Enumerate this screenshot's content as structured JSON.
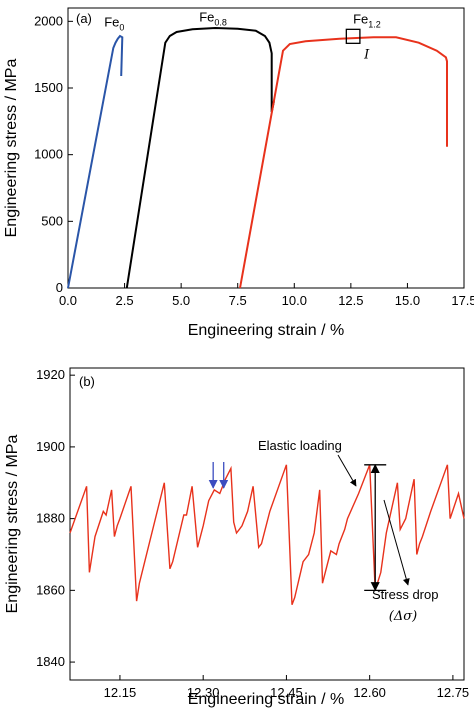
{
  "colors": {
    "fe0": "#2a55a8",
    "fe08": "#000000",
    "fe12": "#e8321c",
    "arrow": "#3b4cc0"
  },
  "chart_data": [
    {
      "type": "line",
      "panel_label": "(a)",
      "xlabel": "Engineering strain / %",
      "ylabel": "Engineering stress / MPa",
      "xlim": [
        0,
        17.5
      ],
      "ylim": [
        0,
        2100
      ],
      "x_ticks": [
        0,
        2.5,
        5,
        7.5,
        10,
        12.5,
        15,
        17.5
      ],
      "x_tick_labels": [
        "0.0",
        "2.5",
        "5.0",
        "7.5",
        "10.0",
        "12.5",
        "15.0",
        "17.5"
      ],
      "y_ticks": [
        0,
        500,
        1000,
        1500,
        2000
      ],
      "y_tick_labels": [
        "0",
        "500",
        "1000",
        "1500",
        "2000"
      ],
      "series": [
        {
          "name": "Fe",
          "subscript": "0",
          "color": "#2a55a8",
          "x": [
            0,
            2.0,
            2.1,
            2.2,
            2.3,
            2.4,
            2.35
          ],
          "y": [
            0,
            1800,
            1840,
            1870,
            1890,
            1880,
            1590
          ]
        },
        {
          "name": "Fe",
          "subscript": "0.8",
          "color": "#000000",
          "x": [
            2.6,
            4.3,
            4.5,
            4.8,
            5.5,
            6.5,
            7.5,
            8.3,
            8.7,
            8.9,
            9.0,
            9.0,
            9.1
          ],
          "y": [
            0,
            1840,
            1890,
            1920,
            1940,
            1950,
            1945,
            1930,
            1890,
            1840,
            1760,
            1320,
            1400
          ]
        },
        {
          "name": "Fe",
          "subscript": "1.2",
          "color": "#e8321c",
          "x": [
            7.6,
            9.5,
            9.8,
            10.5,
            12,
            13.5,
            14.5,
            15.5,
            16.3,
            16.7,
            16.75,
            16.75
          ],
          "y": [
            0,
            1780,
            1830,
            1850,
            1870,
            1880,
            1880,
            1840,
            1780,
            1730,
            1700,
            1060
          ]
        }
      ],
      "annotations": [
        {
          "text": "I",
          "x": 13.2,
          "y": 1720
        }
      ],
      "zoom_box": {
        "x": [
          12.3,
          12.9
        ],
        "y": [
          1835,
          1940
        ]
      }
    },
    {
      "type": "line",
      "panel_label": "(b)",
      "xlabel": "Engineering strain / %",
      "ylabel": "Engineering stress / MPa",
      "xlim": [
        12.06,
        12.77
      ],
      "ylim": [
        1835,
        1922
      ],
      "x_ticks": [
        12.15,
        12.3,
        12.45,
        12.6,
        12.75
      ],
      "x_tick_labels": [
        "12.15",
        "12.30",
        "12.45",
        "12.60",
        "12.75"
      ],
      "y_ticks": [
        1840,
        1860,
        1880,
        1900,
        1920
      ],
      "y_tick_labels": [
        "1840",
        "1860",
        "1880",
        "1900",
        "1920"
      ],
      "series": [
        {
          "name": "Fe1.2",
          "color": "#e8321c",
          "x": [
            12.06,
            12.09,
            12.095,
            12.105,
            12.12,
            12.125,
            12.135,
            12.14,
            12.145,
            12.15,
            12.17,
            12.18,
            12.185,
            12.23,
            12.24,
            12.245,
            12.265,
            12.27,
            12.28,
            12.29,
            12.3,
            12.31,
            12.32,
            12.33,
            12.34,
            12.35,
            12.355,
            12.36,
            12.365,
            12.37,
            12.38,
            12.39,
            12.4,
            12.405,
            12.42,
            12.45,
            12.46,
            12.465,
            12.48,
            12.49,
            12.5,
            12.51,
            12.515,
            12.53,
            12.54,
            12.545,
            12.555,
            12.56,
            12.58,
            12.6,
            12.61,
            12.62,
            12.63,
            12.65,
            12.655,
            12.665,
            12.68,
            12.685,
            12.69,
            12.695,
            12.71,
            12.74,
            12.745,
            12.76,
            12.77
          ],
          "y": [
            1876,
            1889,
            1865,
            1875,
            1882,
            1881,
            1888,
            1875,
            1878,
            1880,
            1889,
            1857,
            1862,
            1890,
            1866,
            1868,
            1881,
            1881,
            1889,
            1872,
            1878,
            1885,
            1888,
            1887,
            1891,
            1894,
            1879,
            1876,
            1877,
            1878,
            1882,
            1889,
            1872,
            1873,
            1882,
            1895,
            1856,
            1858,
            1868,
            1870,
            1876,
            1888,
            1862,
            1871,
            1870,
            1873,
            1877,
            1880,
            1887,
            1895,
            1860,
            1865,
            1876,
            1890,
            1877,
            1880,
            1891,
            1870,
            1873,
            1875,
            1882,
            1895,
            1880,
            1887,
            1880
          ]
        }
      ],
      "labels": {
        "elastic_loading": "Elastic loading",
        "stress_drop": "Stress drop",
        "delta_sigma": "(Δσ)"
      },
      "stress_drop_bar": {
        "x": 12.61,
        "y_top": 1895,
        "y_bottom": 1860
      },
      "blue_arrows_x": [
        12.318,
        12.337
      ]
    }
  ]
}
